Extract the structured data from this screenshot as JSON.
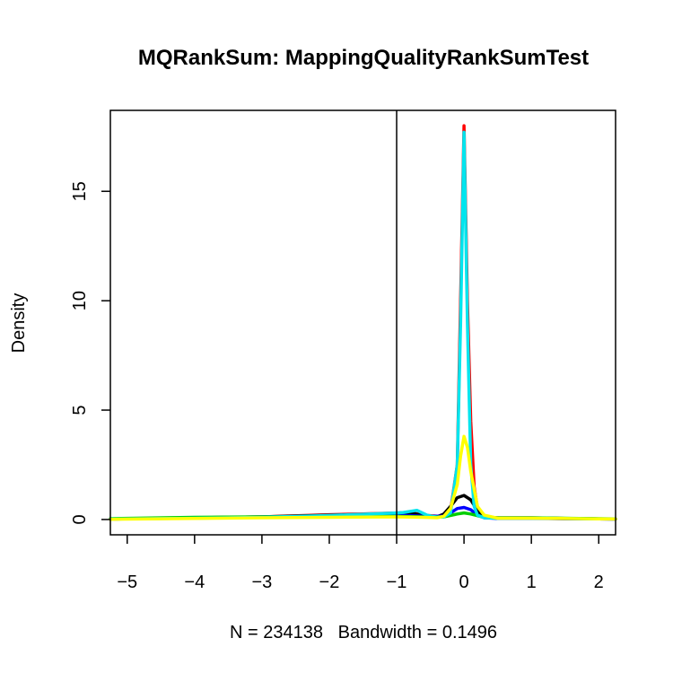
{
  "chart_data": {
    "type": "line",
    "title": "MQRankSum: MappingQualityRankSumTest",
    "xlabel": "N = 234138   Bandwidth = 0.1496",
    "ylabel": "Density",
    "xlim": [
      -5.25,
      2.25
    ],
    "ylim": [
      -0.7,
      18.7
    ],
    "x_ticks": [
      -5,
      -4,
      -3,
      -2,
      -1,
      0,
      1,
      2
    ],
    "x_tick_labels": [
      "−5",
      "−4",
      "−3",
      "−2",
      "−1",
      "0",
      "1",
      "2"
    ],
    "y_ticks": [
      0,
      5,
      10,
      15
    ],
    "y_tick_labels": [
      "0",
      "5",
      "10",
      "15"
    ],
    "vline": {
      "x": -1,
      "color": "#000000"
    },
    "grid": false,
    "series": [
      {
        "color": "#ff0000",
        "x": [
          -5.25,
          -4,
          -3,
          -2,
          -1.5,
          -1,
          -0.8,
          -0.6,
          -0.4,
          -0.3,
          -0.2,
          -0.1,
          -0.05,
          0,
          0.05,
          0.1,
          0.15,
          0.2,
          0.3,
          0.5,
          1,
          1.5,
          2,
          2.25
        ],
        "y": [
          0.02,
          0.08,
          0.12,
          0.22,
          0.25,
          0.3,
          0.32,
          0.2,
          0.15,
          0.2,
          0.4,
          2.5,
          10,
          18,
          10,
          4.5,
          1.5,
          0.5,
          0.12,
          0.08,
          0.08,
          0.05,
          0.03,
          0.02
        ]
      },
      {
        "color": "#000000",
        "x": [
          -5.25,
          -4,
          -3,
          -2,
          -1.5,
          -1,
          -0.8,
          -0.6,
          -0.4,
          -0.3,
          -0.2,
          -0.1,
          0,
          0.1,
          0.2,
          0.3,
          0.5,
          1,
          1.5,
          2,
          2.25
        ],
        "y": [
          0.02,
          0.08,
          0.12,
          0.2,
          0.23,
          0.27,
          0.3,
          0.18,
          0.12,
          0.25,
          0.6,
          1.0,
          1.1,
          0.9,
          0.4,
          0.1,
          0.06,
          0.06,
          0.04,
          0.03,
          0.02
        ]
      },
      {
        "color": "#0000ff",
        "x": [
          -5.25,
          -4,
          -3,
          -2,
          -1,
          -0.6,
          -0.3,
          -0.2,
          -0.1,
          0,
          0.1,
          0.2,
          0.3,
          0.5,
          1,
          2,
          2.25
        ],
        "y": [
          0.02,
          0.07,
          0.1,
          0.15,
          0.2,
          0.15,
          0.15,
          0.3,
          0.5,
          0.55,
          0.45,
          0.2,
          0.08,
          0.05,
          0.05,
          0.03,
          0.02
        ]
      },
      {
        "color": "#00cd00",
        "x": [
          -5.25,
          -4,
          -3,
          -2,
          -1,
          -0.6,
          -0.3,
          -0.1,
          0,
          0.1,
          0.3,
          0.5,
          1,
          2,
          2.25
        ],
        "y": [
          0.04,
          0.1,
          0.12,
          0.14,
          0.14,
          0.12,
          0.12,
          0.25,
          0.3,
          0.25,
          0.1,
          0.08,
          0.08,
          0.04,
          0.03
        ]
      },
      {
        "color": "#00e5ee",
        "x": [
          -5.25,
          -4,
          -3,
          -2,
          -1,
          -0.9,
          -0.7,
          -0.55,
          -0.4,
          -0.3,
          -0.2,
          -0.1,
          -0.05,
          0,
          0.05,
          0.1,
          0.15,
          0.2,
          0.3,
          0.5,
          1,
          2,
          2.25
        ],
        "y": [
          0.02,
          0.06,
          0.1,
          0.18,
          0.3,
          0.32,
          0.42,
          0.2,
          0.1,
          0.12,
          0.3,
          2.5,
          9,
          17.7,
          9,
          2.5,
          0.6,
          0.2,
          0.08,
          0.06,
          0.06,
          0.03,
          0.02
        ]
      },
      {
        "color": "#ffff00",
        "x": [
          -5.25,
          -4,
          -3,
          -2,
          -1,
          -0.6,
          -0.4,
          -0.3,
          -0.2,
          -0.1,
          -0.05,
          0,
          0.05,
          0.1,
          0.2,
          0.3,
          0.5,
          1,
          2,
          2.25
        ],
        "y": [
          0.01,
          0.05,
          0.08,
          0.1,
          0.12,
          0.1,
          0.08,
          0.15,
          0.5,
          1.6,
          2.9,
          3.8,
          3.3,
          2.2,
          0.6,
          0.2,
          0.06,
          0.06,
          0.03,
          0.02
        ]
      }
    ]
  }
}
